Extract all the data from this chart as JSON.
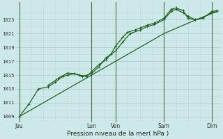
{
  "bg_color": "#cce8e8",
  "grid_color_major": "#aacccc",
  "grid_color_minor": "#bbdddd",
  "line_color": "#1a5c1a",
  "ylabel_values": [
    1009,
    1011,
    1013,
    1015,
    1017,
    1019,
    1021,
    1023
  ],
  "ylim": [
    1008.2,
    1025.5
  ],
  "xlim": [
    -0.15,
    8.35
  ],
  "xlabel": "Pression niveau de la mer( hPa )",
  "xtick_labels": [
    "Jeu",
    "",
    "",
    "Lun",
    "Ven",
    "",
    "Sam",
    "",
    "Dim"
  ],
  "xtick_positions": [
    0,
    1,
    2,
    3,
    4,
    5,
    6,
    7,
    8
  ],
  "vlines_x": [
    0,
    3,
    4,
    6,
    8
  ],
  "line1_with_markers": [
    [
      0.0,
      1009.0
    ],
    [
      0.4,
      1010.8
    ],
    [
      0.8,
      1013.0
    ],
    [
      1.2,
      1013.3
    ],
    [
      1.5,
      1014.0
    ],
    [
      1.8,
      1014.8
    ],
    [
      2.0,
      1015.0
    ],
    [
      2.3,
      1015.2
    ],
    [
      2.5,
      1015.0
    ],
    [
      2.8,
      1014.8
    ],
    [
      3.0,
      1015.5
    ],
    [
      3.3,
      1016.5
    ],
    [
      3.6,
      1017.2
    ],
    [
      3.8,
      1018.0
    ],
    [
      4.0,
      1019.2
    ],
    [
      4.3,
      1020.5
    ],
    [
      4.5,
      1021.2
    ],
    [
      4.8,
      1021.5
    ],
    [
      5.0,
      1021.8
    ],
    [
      5.3,
      1022.2
    ],
    [
      5.6,
      1022.5
    ],
    [
      6.0,
      1023.2
    ],
    [
      6.3,
      1024.5
    ],
    [
      6.5,
      1024.7
    ],
    [
      6.8,
      1024.3
    ],
    [
      7.0,
      1023.2
    ],
    [
      7.3,
      1023.0
    ],
    [
      7.6,
      1023.2
    ],
    [
      8.0,
      1024.2
    ],
    [
      8.2,
      1024.3
    ]
  ],
  "line2_smooth": [
    [
      0.0,
      1009.0
    ],
    [
      1.0,
      1011.0
    ],
    [
      2.0,
      1013.0
    ],
    [
      3.0,
      1015.0
    ],
    [
      4.0,
      1017.0
    ],
    [
      5.0,
      1019.0
    ],
    [
      6.0,
      1021.0
    ],
    [
      7.0,
      1022.5
    ],
    [
      8.2,
      1024.2
    ]
  ],
  "line3_with_markers": [
    [
      1.2,
      1013.5
    ],
    [
      1.6,
      1014.5
    ],
    [
      2.0,
      1015.3
    ],
    [
      2.3,
      1015.2
    ],
    [
      2.6,
      1014.8
    ],
    [
      3.0,
      1015.2
    ],
    [
      3.3,
      1016.2
    ],
    [
      3.6,
      1017.5
    ],
    [
      4.0,
      1018.5
    ],
    [
      4.3,
      1019.8
    ],
    [
      4.6,
      1021.0
    ],
    [
      5.0,
      1021.5
    ],
    [
      5.3,
      1022.0
    ],
    [
      5.6,
      1022.3
    ],
    [
      6.0,
      1023.0
    ],
    [
      6.3,
      1024.2
    ],
    [
      6.5,
      1024.5
    ],
    [
      6.8,
      1024.0
    ],
    [
      7.0,
      1023.5
    ],
    [
      7.3,
      1023.0
    ],
    [
      7.6,
      1023.3
    ],
    [
      8.0,
      1024.0
    ],
    [
      8.2,
      1024.2
    ]
  ],
  "figsize": [
    3.2,
    2.0
  ],
  "dpi": 100
}
